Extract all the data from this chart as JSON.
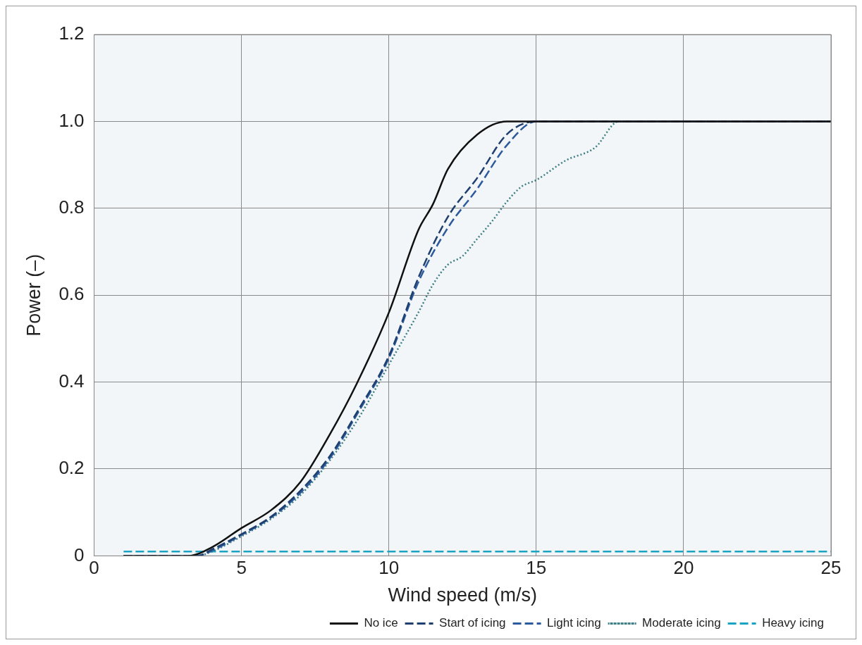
{
  "chart_data": {
    "type": "line",
    "xlabel": "Wind speed (m/s)",
    "ylabel": "Power (–)",
    "xlim": [
      0,
      25
    ],
    "xticks": [
      0,
      5,
      10,
      15,
      20,
      25
    ],
    "ylim": [
      0,
      1.2
    ],
    "yticks": [
      {
        "value": 0,
        "label": "0"
      },
      0.2,
      0.4,
      0.6,
      0.8,
      {
        "value": 1,
        "label": "1.0"
      },
      1.2
    ],
    "grid": true,
    "legend": "bottom",
    "marker": "none",
    "series": [
      {
        "name": "No ice",
        "color": "#111111",
        "line_style": "solid",
        "x": [
          1,
          3.2,
          4,
          5,
          6,
          7,
          8,
          8.9,
          10,
          11,
          11.5,
          12,
          13,
          14,
          15,
          20,
          25
        ],
        "values": [
          0,
          0,
          0.02,
          0.064,
          0.105,
          0.17,
          0.28,
          0.395,
          0.56,
          0.75,
          0.81,
          0.89,
          0.97,
          1.0,
          1.0,
          1.0,
          1.0
        ]
      },
      {
        "name": "Start of icing",
        "color": "#1f3f6e",
        "line_style": "dashed",
        "x": [
          1,
          3.5,
          4,
          5,
          6,
          7,
          8,
          9,
          10,
          11,
          12,
          13,
          14,
          15,
          20,
          25
        ],
        "values": [
          0,
          0,
          0.015,
          0.05,
          0.09,
          0.15,
          0.23,
          0.34,
          0.46,
          0.64,
          0.78,
          0.87,
          0.97,
          1.0,
          1.0,
          1.0
        ]
      },
      {
        "name": "Light icing",
        "color": "#2d5a9c",
        "line_style": "dashed",
        "x": [
          1,
          3.5,
          4,
          5,
          6,
          7,
          8,
          9,
          10,
          11,
          12,
          13,
          14,
          15,
          20,
          25
        ],
        "values": [
          0,
          0,
          0.012,
          0.048,
          0.088,
          0.145,
          0.225,
          0.335,
          0.455,
          0.63,
          0.755,
          0.845,
          0.945,
          1.0,
          1.0,
          1.0
        ]
      },
      {
        "name": "Moderate icing",
        "color": "#3f7f86",
        "line_style": "dotted",
        "x": [
          1,
          3.5,
          4,
          5,
          6,
          7,
          8,
          9,
          10,
          11,
          11.5,
          12,
          12.5,
          13,
          13.5,
          14,
          14.5,
          15,
          16,
          17,
          17.8,
          20,
          25
        ],
        "values": [
          0,
          0,
          0.01,
          0.045,
          0.085,
          0.14,
          0.22,
          0.32,
          0.44,
          0.56,
          0.625,
          0.67,
          0.69,
          0.73,
          0.77,
          0.815,
          0.85,
          0.865,
          0.91,
          0.94,
          1.0,
          1.0,
          1.0
        ]
      },
      {
        "name": "Heavy icing",
        "color": "#1ba3c4",
        "line_style": "dashed",
        "x": [
          1,
          25
        ],
        "values": [
          0.01,
          0.01
        ]
      }
    ]
  }
}
